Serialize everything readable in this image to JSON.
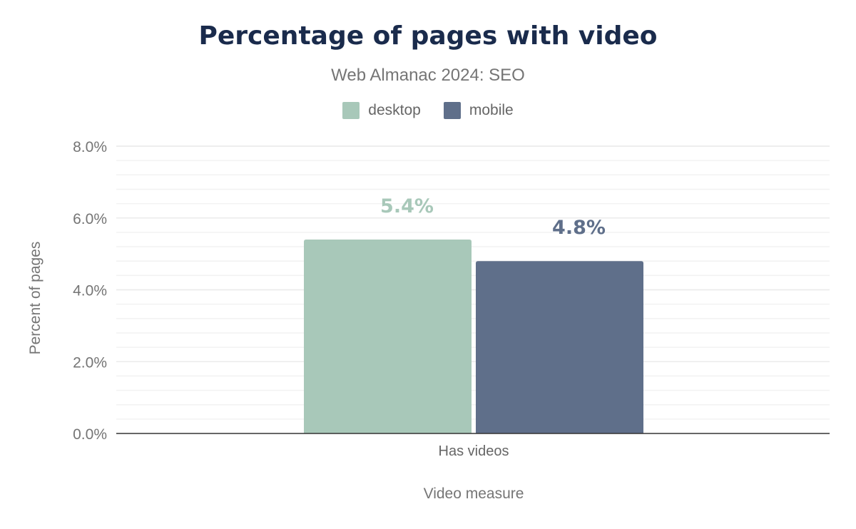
{
  "chart_data": {
    "type": "bar",
    "title": "Percentage of pages with video",
    "subtitle": "Web Almanac 2024: SEO",
    "xlabel": "Video measure",
    "ylabel": "Percent of pages",
    "categories": [
      "Has videos"
    ],
    "series": [
      {
        "name": "desktop",
        "values": [
          5.4
        ],
        "labels": [
          "5.4%"
        ],
        "color": "#a8c8b9"
      },
      {
        "name": "mobile",
        "values": [
          4.8
        ],
        "labels": [
          "4.8%"
        ],
        "color": "#5f6f8a"
      }
    ],
    "ylim": [
      0,
      8
    ],
    "yticks": [
      0,
      2,
      4,
      6,
      8
    ],
    "ytick_labels": [
      "0.0%",
      "2.0%",
      "4.0%",
      "6.0%",
      "8.0%"
    ],
    "minor_grid_step": 0.4,
    "grid": true,
    "legend": "top-center"
  }
}
